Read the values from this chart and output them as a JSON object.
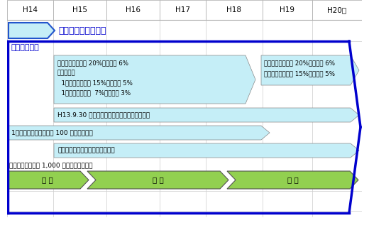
{
  "title_row": [
    "H14",
    "H15",
    "H16",
    "H17",
    "H18",
    "H19",
    "H20～"
  ],
  "col_positions": [
    0,
    65,
    140,
    215,
    280,
    360,
    430,
    500
  ],
  "colors": {
    "light_blue": "#c5eef7",
    "green": "#92d050",
    "dark_blue": "#0000cd",
    "grid_line": "#cccccc",
    "text_blue": "#0000cc"
  },
  "fig_bg": "#ffffff"
}
